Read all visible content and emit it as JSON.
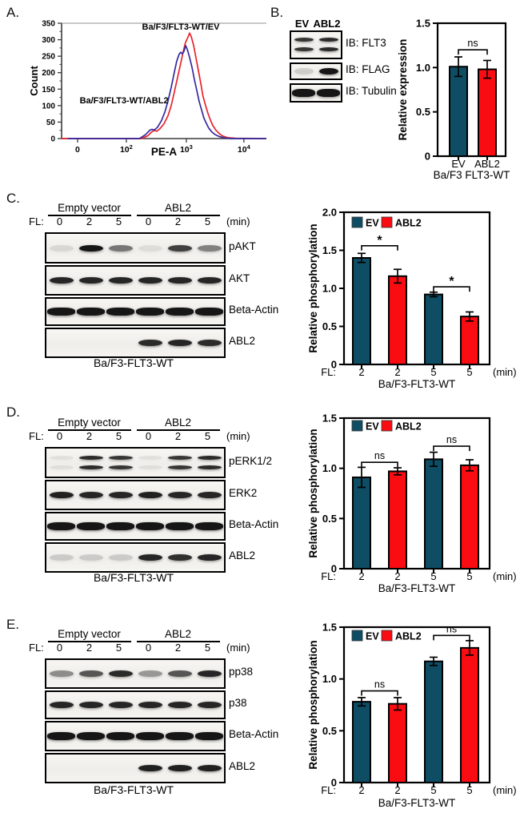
{
  "colors": {
    "teal": "#0e4d63",
    "red": "#f90d12",
    "curve_red": "#e8232b",
    "curve_blue": "#342a9e",
    "axis_gray": "#3c3c3c",
    "frame_gray": "#b5b5b5"
  },
  "panels": {
    "A": {
      "label": "A."
    },
    "B": {
      "label": "B.",
      "blot": {
        "lane_headers": [
          "EV",
          "ABL2"
        ],
        "rows": [
          {
            "label": "IB: FLT3",
            "type": "doublet",
            "bands": [
              0.85,
              0.9
            ]
          },
          {
            "label": "IB: FLAG",
            "type": "single",
            "bands": [
              0.14,
              1
            ]
          },
          {
            "label": "IB: Tubulin",
            "type": "thick",
            "bands": [
              1,
              1
            ]
          }
        ]
      }
    },
    "C": {
      "label": "C.",
      "blot": {
        "fl_label": "FL:",
        "groups": [
          "Empty vector",
          "ABL2"
        ],
        "timepoints": [
          "0",
          "2",
          "5",
          "0",
          "2",
          "5"
        ],
        "unit": "(min)",
        "caption": "Ba/F3-FLT3-WT",
        "rows": [
          {
            "label": "pAKT",
            "type": "single",
            "bands": [
              0.1,
              1,
              0.55,
              0.08,
              0.8,
              0.5
            ]
          },
          {
            "label": "AKT",
            "type": "single",
            "bands": [
              0.92,
              0.92,
              0.92,
              0.92,
              0.92,
              0.92
            ]
          },
          {
            "label": "Beta-Actin",
            "type": "thick",
            "bands": [
              1,
              1,
              1,
              1,
              1,
              1
            ]
          },
          {
            "label": "ABL2",
            "type": "single",
            "bands": [
              0,
              0,
              0,
              0.9,
              0.92,
              0.9
            ]
          }
        ]
      }
    },
    "D": {
      "label": "D.",
      "blot": {
        "fl_label": "FL:",
        "groups": [
          "Empty vector",
          "ABL2"
        ],
        "timepoints": [
          "0",
          "2",
          "5",
          "0",
          "2",
          "5"
        ],
        "unit": "(min)",
        "caption": "Ba/F3-FLT3-WT",
        "rows": [
          {
            "label": "pERK1/2",
            "type": "doublet",
            "bands": [
              0.07,
              0.9,
              0.85,
              0.07,
              0.85,
              0.9
            ]
          },
          {
            "label": "ERK2",
            "type": "single",
            "bands": [
              0.95,
              0.92,
              0.92,
              0.95,
              0.92,
              0.92
            ]
          },
          {
            "label": "Beta-Actin",
            "type": "thick",
            "bands": [
              1,
              1,
              1,
              1,
              1,
              1
            ]
          },
          {
            "label": "ABL2",
            "type": "single",
            "bands": [
              0.16,
              0.16,
              0.16,
              0.92,
              0.88,
              0.92
            ]
          }
        ]
      }
    },
    "E": {
      "label": "E.",
      "blot": {
        "fl_label": "FL:",
        "groups": [
          "Empty vector",
          "ABL2"
        ],
        "timepoints": [
          "0",
          "2",
          "5",
          "0",
          "2",
          "5"
        ],
        "unit": "(min)",
        "caption": "Ba/F3-FLT3-WT",
        "rows": [
          {
            "label": "pp38",
            "type": "single",
            "bands": [
              0.45,
              0.7,
              0.9,
              0.4,
              0.7,
              0.92
            ]
          },
          {
            "label": "p38",
            "type": "single",
            "bands": [
              0.92,
              0.92,
              0.92,
              0.92,
              0.92,
              0.92
            ]
          },
          {
            "label": "Beta-Actin",
            "type": "thick",
            "bands": [
              1,
              1,
              1,
              1,
              1,
              1
            ]
          },
          {
            "label": "ABL2",
            "type": "single",
            "bands": [
              0,
              0,
              0,
              0.95,
              0.95,
              0.95
            ]
          }
        ]
      }
    }
  },
  "chart_data": [
    {
      "id": "A-flow",
      "type": "line",
      "title": "",
      "xlabel": "PE-A",
      "ylabel": "Count",
      "ylim": [
        0,
        350
      ],
      "yticks": [
        0,
        50,
        100,
        150,
        200,
        250,
        300,
        350
      ],
      "xticks": [
        {
          "f": 0.078,
          "t": "0"
        },
        {
          "f": 0.316,
          "t": "10",
          "e": "2"
        },
        {
          "f": 0.609,
          "t": "10",
          "e": "3"
        },
        {
          "f": 0.89,
          "t": "10",
          "e": "4"
        }
      ],
      "series": [
        {
          "name": "Ba/F3/FLT3-WT/EV",
          "color": "curve_red",
          "points": [
            [
              0,
              0
            ],
            [
              0.39,
              0
            ],
            [
              0.42,
              8
            ],
            [
              0.44,
              20
            ],
            [
              0.453,
              25
            ],
            [
              0.465,
              22
            ],
            [
              0.48,
              30
            ],
            [
              0.5,
              45
            ],
            [
              0.52,
              70
            ],
            [
              0.535,
              100
            ],
            [
              0.55,
              140
            ],
            [
              0.566,
              185
            ],
            [
              0.582,
              230
            ],
            [
              0.594,
              265
            ],
            [
              0.605,
              292
            ],
            [
              0.617,
              308
            ],
            [
              0.625,
              320
            ],
            [
              0.633,
              310
            ],
            [
              0.645,
              282
            ],
            [
              0.656,
              246
            ],
            [
              0.668,
              206
            ],
            [
              0.68,
              166
            ],
            [
              0.69,
              130
            ],
            [
              0.703,
              100
            ],
            [
              0.715,
              76
            ],
            [
              0.727,
              56
            ],
            [
              0.738,
              40
            ],
            [
              0.754,
              25
            ],
            [
              0.77,
              15
            ],
            [
              0.785,
              8
            ],
            [
              0.81,
              3
            ],
            [
              0.85,
              1
            ],
            [
              1,
              0
            ]
          ]
        },
        {
          "name": "Ba/F3/FLT3-WT/ABL2",
          "color": "curve_blue",
          "points": [
            [
              0.03,
              0
            ],
            [
              0.38,
              0
            ],
            [
              0.41,
              12
            ],
            [
              0.43,
              25
            ],
            [
              0.441,
              28
            ],
            [
              0.453,
              26
            ],
            [
              0.469,
              35
            ],
            [
              0.488,
              55
            ],
            [
              0.504,
              80
            ],
            [
              0.52,
              115
            ],
            [
              0.535,
              155
            ],
            [
              0.55,
              200
            ],
            [
              0.562,
              235
            ],
            [
              0.574,
              256
            ],
            [
              0.582,
              262
            ],
            [
              0.59,
              257
            ],
            [
              0.598,
              266
            ],
            [
              0.606,
              282
            ],
            [
              0.614,
              270
            ],
            [
              0.625,
              246
            ],
            [
              0.637,
              215
            ],
            [
              0.648,
              180
            ],
            [
              0.66,
              146
            ],
            [
              0.672,
              112
            ],
            [
              0.684,
              86
            ],
            [
              0.695,
              62
            ],
            [
              0.707,
              46
            ],
            [
              0.718,
              32
            ],
            [
              0.734,
              20
            ],
            [
              0.75,
              12
            ],
            [
              0.77,
              6
            ],
            [
              0.795,
              2
            ],
            [
              0.83,
              0
            ],
            [
              1,
              0
            ]
          ]
        }
      ],
      "annotations": [
        {
          "text": "Ba/F3/FLT3-WT/EV",
          "color": "curve_red",
          "f": 0.582,
          "count": 330
        },
        {
          "text": "Ba/F3/FLT3-WT/ABL2",
          "color": "curve_blue",
          "f": 0.305,
          "count": 107
        }
      ]
    },
    {
      "id": "B-expression",
      "type": "bar",
      "ylabel": "Relative expression",
      "ylim": [
        0,
        1.5
      ],
      "yticks": [
        "0",
        "0.5",
        "1.0",
        "1.5"
      ],
      "categories": [
        "EV",
        "ABL2"
      ],
      "values": [
        1.01,
        0.98
      ],
      "errors": [
        0.11,
        0.1
      ],
      "colors": [
        "teal",
        "red"
      ],
      "xcaption": "Ba/F3 FLT3-WT",
      "sig": [
        {
          "i": 0,
          "j": 1,
          "y": 1.2,
          "label": "ns"
        }
      ]
    },
    {
      "id": "C-pAKT",
      "type": "bar",
      "ylabel": "Relative phosphorylation",
      "ylim": [
        0,
        2
      ],
      "yticks": [
        "0",
        "0.5",
        "1.0",
        "1.5",
        "2.0"
      ],
      "legend": [
        "EV",
        "ABL2"
      ],
      "xprefix": "FL:",
      "categories": [
        "2",
        "2",
        "5",
        "5"
      ],
      "xunit": "(min)",
      "values": [
        1.4,
        1.16,
        0.92,
        0.63
      ],
      "errors": [
        0.06,
        0.09,
        0.03,
        0.06
      ],
      "colors": [
        "teal",
        "red",
        "teal",
        "red"
      ],
      "xcaption": "Ba/F3-FLT3-WT",
      "sig": [
        {
          "i": 0,
          "j": 1,
          "y": 1.56,
          "label": "*"
        },
        {
          "i": 2,
          "j": 3,
          "y": 1.02,
          "label": "*"
        }
      ]
    },
    {
      "id": "D-pERK",
      "type": "bar",
      "ylabel": "Relative phosphorylation",
      "ylim": [
        0,
        1.5
      ],
      "yticks": [
        "0",
        "0.5",
        "1.0",
        "1.5"
      ],
      "legend": [
        "EV",
        "ABL2"
      ],
      "xprefix": "FL:",
      "categories": [
        "2",
        "2",
        "5",
        "5"
      ],
      "xunit": "(min)",
      "values": [
        0.91,
        0.97,
        1.09,
        1.03
      ],
      "errors": [
        0.1,
        0.035,
        0.07,
        0.055
      ],
      "colors": [
        "teal",
        "red",
        "teal",
        "red"
      ],
      "xcaption": "Ba/F3-FLT3-WT",
      "sig": [
        {
          "i": 0,
          "j": 1,
          "y": 1.06,
          "label": "ns"
        },
        {
          "i": 2,
          "j": 3,
          "y": 1.22,
          "label": "ns"
        }
      ]
    },
    {
      "id": "E-pp38",
      "type": "bar",
      "ylabel": "Relative phosphorylation",
      "ylim": [
        0,
        1.5
      ],
      "yticks": [
        "0",
        "0.5",
        "1.0",
        "1.5"
      ],
      "legend": [
        "EV",
        "ABL2"
      ],
      "xprefix": "FL:",
      "categories": [
        "2",
        "2",
        "5",
        "5"
      ],
      "xunit": "(min)",
      "values": [
        0.78,
        0.76,
        1.17,
        1.3
      ],
      "errors": [
        0.04,
        0.06,
        0.04,
        0.07
      ],
      "colors": [
        "teal",
        "red",
        "teal",
        "red"
      ],
      "xcaption": "Ba/F3-FLT3-WT",
      "sig": [
        {
          "i": 0,
          "j": 1,
          "y": 0.885,
          "label": "ns"
        },
        {
          "i": 2,
          "j": 3,
          "y": 1.42,
          "label": "ns"
        }
      ]
    }
  ]
}
